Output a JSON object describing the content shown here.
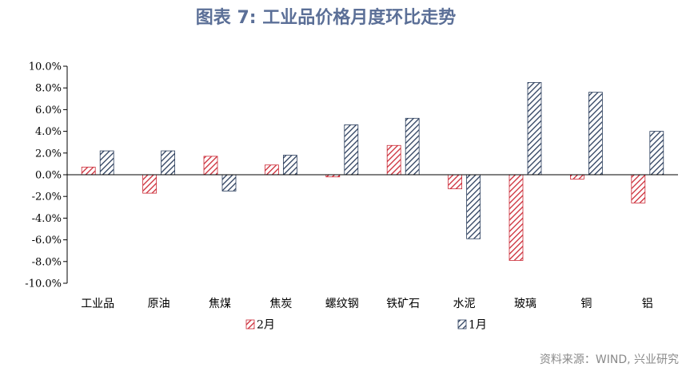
{
  "title": "图表 7:  工业品价格月度环比走势",
  "source": "资料来源：WIND, 兴业研究",
  "colors": {
    "feb": "#cc2a36",
    "jan": "#2a3d5c",
    "title": "#5b6f97"
  },
  "chart_data": {
    "type": "bar",
    "categories": [
      "工业品",
      "原油",
      "焦煤",
      "焦炭",
      "螺纹钢",
      "铁矿石",
      "水泥",
      "玻璃",
      "铜",
      "铝"
    ],
    "series": [
      {
        "name": "2月",
        "values": [
          0.7,
          -1.7,
          1.7,
          0.9,
          -0.2,
          2.7,
          -1.3,
          -7.9,
          -0.4,
          -2.6
        ]
      },
      {
        "name": "1月",
        "values": [
          2.2,
          2.2,
          -1.5,
          1.8,
          4.6,
          5.2,
          -5.9,
          8.5,
          7.6,
          4.0
        ]
      }
    ],
    "yticks": [
      "10.0%",
      "8.0%",
      "6.0%",
      "4.0%",
      "2.0%",
      "0.0%",
      "-2.0%",
      "-4.0%",
      "-6.0%",
      "-8.0%",
      "-10.0%"
    ],
    "ylim": [
      -10,
      10
    ],
    "legend_position": "bottom",
    "grid": false
  }
}
